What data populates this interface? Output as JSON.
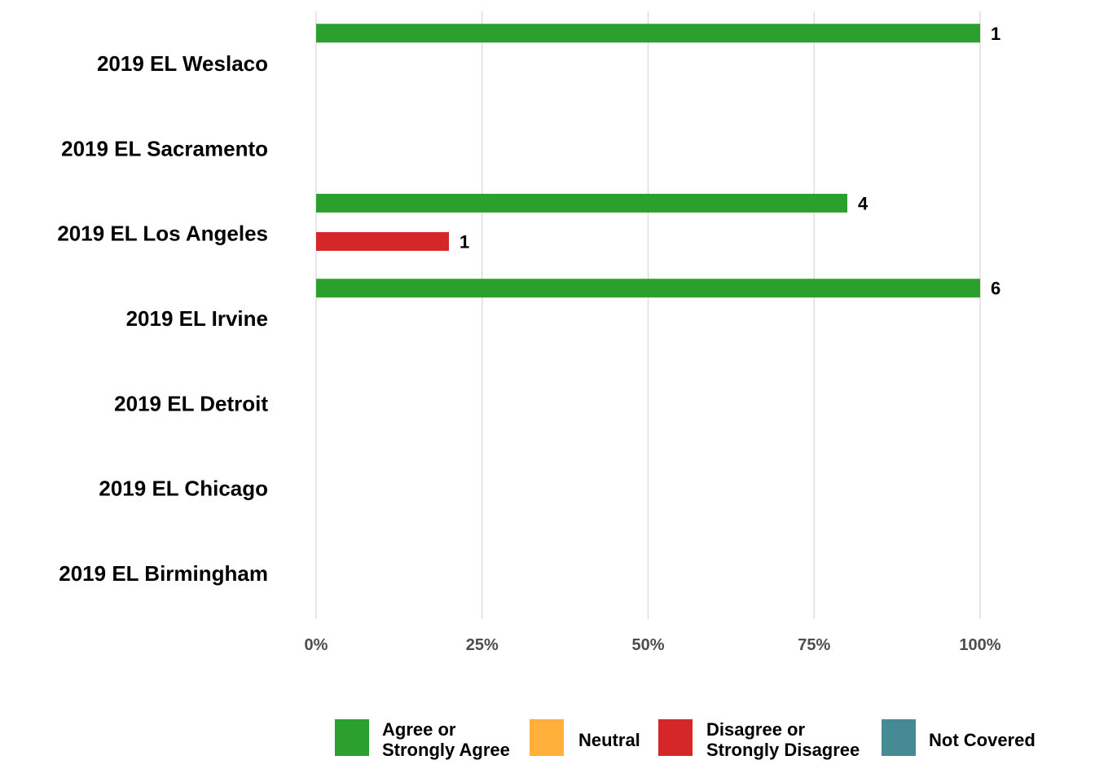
{
  "chart_data": {
    "type": "bar",
    "orientation": "horizontal",
    "categories": [
      "2019 EL Weslaco",
      "2019 EL Sacramento",
      "2019 EL Los Angeles",
      "2019 EL Irvine",
      "2019 EL Detroit",
      "2019 EL Chicago",
      "2019 EL Birmingham"
    ],
    "series": [
      {
        "name": "Agree or Strongly Agree",
        "legend_lines": [
          "Agree or",
          "Strongly Agree"
        ],
        "color": "#2ca02c",
        "values": [
          100,
          null,
          80,
          100,
          null,
          null,
          null
        ],
        "labels": [
          "1",
          null,
          "4",
          "6",
          null,
          null,
          null
        ]
      },
      {
        "name": "Neutral",
        "legend_lines": [
          "Neutral"
        ],
        "color": "#ffb03b",
        "values": [
          null,
          null,
          null,
          null,
          null,
          null,
          null
        ],
        "labels": [
          null,
          null,
          null,
          null,
          null,
          null,
          null
        ]
      },
      {
        "name": "Disagree or Strongly Disagree",
        "legend_lines": [
          "Disagree or",
          "Strongly Disagree"
        ],
        "color": "#d62728",
        "values": [
          null,
          null,
          20,
          null,
          null,
          null,
          null
        ],
        "labels": [
          null,
          null,
          "1",
          null,
          null,
          null,
          null
        ]
      },
      {
        "name": "Not Covered",
        "legend_lines": [
          "Not Covered"
        ],
        "color": "#468b94",
        "values": [
          null,
          null,
          null,
          null,
          null,
          null,
          null
        ],
        "labels": [
          null,
          null,
          null,
          null,
          null,
          null,
          null
        ]
      }
    ],
    "x_ticks": [
      "0%",
      "25%",
      "50%",
      "75%",
      "100%"
    ],
    "xlim": [
      0,
      100
    ],
    "grid": "vertical",
    "legend_position": "bottom"
  }
}
